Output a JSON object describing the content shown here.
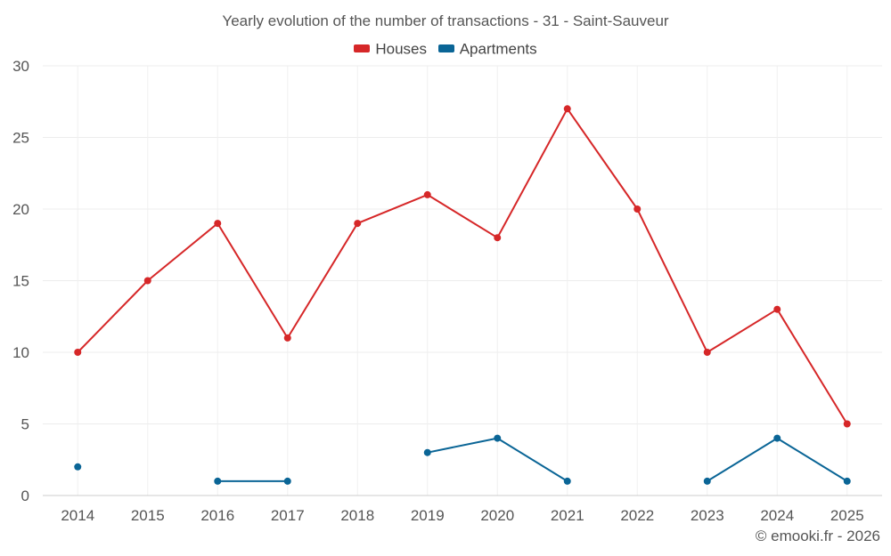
{
  "chart_data": {
    "type": "line",
    "title": "Yearly evolution of the number of transactions - 31 - Saint-Sauveur",
    "categories": [
      "2014",
      "2015",
      "2016",
      "2017",
      "2018",
      "2019",
      "2020",
      "2021",
      "2022",
      "2023",
      "2024",
      "2025"
    ],
    "y_ticks": [
      "0",
      "5",
      "10",
      "15",
      "20",
      "25",
      "30"
    ],
    "ylim": [
      0,
      30
    ],
    "xlabel": "",
    "ylabel": "",
    "legend_position": "top-center",
    "grid": true,
    "series": [
      {
        "name": "Houses",
        "color": "#d62728",
        "values": [
          10,
          15,
          19,
          11,
          19,
          21,
          18,
          27,
          20,
          10,
          13,
          5
        ]
      },
      {
        "name": "Apartments",
        "color": "#0a6596",
        "values": [
          2,
          null,
          1,
          1,
          null,
          3,
          4,
          1,
          null,
          1,
          4,
          1
        ]
      }
    ]
  },
  "legend": {
    "houses_label": "Houses",
    "apartments_label": "Apartments"
  },
  "credit": "© emooki.fr - 2026"
}
